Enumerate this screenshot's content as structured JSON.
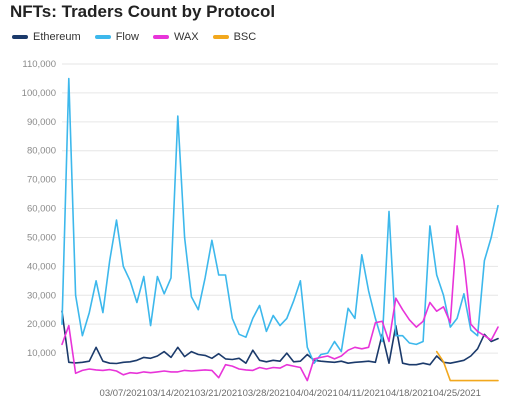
{
  "chart_data": {
    "type": "line",
    "title": "NFTs: Traders Count by Protocol",
    "xlabel": "",
    "ylabel": "",
    "ylim": [
      0,
      110000
    ],
    "yticks": [
      {
        "value": 10000,
        "label": "10,000"
      },
      {
        "value": 20000,
        "label": "20,000"
      },
      {
        "value": 30000,
        "label": "30,000"
      },
      {
        "value": 40000,
        "label": "40,000"
      },
      {
        "value": 50000,
        "label": "50,000"
      },
      {
        "value": 60000,
        "label": "60,000"
      },
      {
        "value": 70000,
        "label": "70,000"
      },
      {
        "value": 80000,
        "label": "80,000"
      },
      {
        "value": 90000,
        "label": "90,000"
      },
      {
        "value": 100000,
        "label": "100,000"
      },
      {
        "value": 110000,
        "label": "110,000"
      }
    ],
    "xlim": [
      "2021-02-26",
      "2021-05-01"
    ],
    "xticks": [
      {
        "date": "2021-03-07",
        "label": "03/07/2021"
      },
      {
        "date": "2021-03-14",
        "label": "03/14/2021"
      },
      {
        "date": "2021-03-21",
        "label": "03/21/2021"
      },
      {
        "date": "2021-03-28",
        "label": "03/28/2021"
      },
      {
        "date": "2021-04-04",
        "label": "04/04/2021"
      },
      {
        "date": "2021-04-11",
        "label": "04/11/2021"
      },
      {
        "date": "2021-04-18",
        "label": "04/18/2021"
      },
      {
        "date": "2021-04-25",
        "label": "04/25/2021"
      }
    ],
    "grid": true,
    "legend_position": "top-left",
    "series": [
      {
        "name": "Ethereum",
        "color": "#1b3a6b",
        "points": [
          [
            "2021-02-26",
            24500
          ],
          [
            "2021-02-27",
            6800
          ],
          [
            "2021-02-28",
            6600
          ],
          [
            "2021-03-01",
            6800
          ],
          [
            "2021-03-02",
            7200
          ],
          [
            "2021-03-03",
            12000
          ],
          [
            "2021-03-04",
            7200
          ],
          [
            "2021-03-05",
            6500
          ],
          [
            "2021-03-06",
            6400
          ],
          [
            "2021-03-07",
            6800
          ],
          [
            "2021-03-08",
            7000
          ],
          [
            "2021-03-09",
            7500
          ],
          [
            "2021-03-10",
            8500
          ],
          [
            "2021-03-11",
            8200
          ],
          [
            "2021-03-12",
            9000
          ],
          [
            "2021-03-13",
            10500
          ],
          [
            "2021-03-14",
            8500
          ],
          [
            "2021-03-15",
            12000
          ],
          [
            "2021-03-16",
            8800
          ],
          [
            "2021-03-17",
            10500
          ],
          [
            "2021-03-18",
            9500
          ],
          [
            "2021-03-19",
            9200
          ],
          [
            "2021-03-20",
            8200
          ],
          [
            "2021-03-21",
            9800
          ],
          [
            "2021-03-22",
            8000
          ],
          [
            "2021-03-23",
            7800
          ],
          [
            "2021-03-24",
            8200
          ],
          [
            "2021-03-25",
            6500
          ],
          [
            "2021-03-26",
            11000
          ],
          [
            "2021-03-27",
            7500
          ],
          [
            "2021-03-28",
            7000
          ],
          [
            "2021-03-29",
            7500
          ],
          [
            "2021-03-30",
            7200
          ],
          [
            "2021-03-31",
            10000
          ],
          [
            "2021-04-01",
            7000
          ],
          [
            "2021-04-02",
            7200
          ],
          [
            "2021-04-03",
            9500
          ],
          [
            "2021-04-04",
            7500
          ],
          [
            "2021-04-05",
            7200
          ],
          [
            "2021-04-06",
            7000
          ],
          [
            "2021-04-07",
            6800
          ],
          [
            "2021-04-08",
            7200
          ],
          [
            "2021-04-09",
            6500
          ],
          [
            "2021-04-10",
            6800
          ],
          [
            "2021-04-11",
            7000
          ],
          [
            "2021-04-12",
            7200
          ],
          [
            "2021-04-13",
            6800
          ],
          [
            "2021-04-14",
            16500
          ],
          [
            "2021-04-15",
            6500
          ],
          [
            "2021-04-16",
            19500
          ],
          [
            "2021-04-17",
            6500
          ],
          [
            "2021-04-18",
            6000
          ],
          [
            "2021-04-19",
            6000
          ],
          [
            "2021-04-20",
            6500
          ],
          [
            "2021-04-21",
            6000
          ],
          [
            "2021-04-22",
            9000
          ],
          [
            "2021-04-23",
            6800
          ],
          [
            "2021-04-24",
            6500
          ],
          [
            "2021-04-25",
            7000
          ],
          [
            "2021-04-26",
            7500
          ],
          [
            "2021-04-27",
            9000
          ],
          [
            "2021-04-28",
            11500
          ],
          [
            "2021-04-29",
            16500
          ],
          [
            "2021-04-30",
            14000
          ],
          [
            "2021-05-01",
            15000
          ]
        ]
      },
      {
        "name": "Flow",
        "color": "#3db8ec",
        "points": [
          [
            "2021-02-26",
            20000
          ],
          [
            "2021-02-27",
            105000
          ],
          [
            "2021-02-28",
            30000
          ],
          [
            "2021-03-01",
            16000
          ],
          [
            "2021-03-02",
            24000
          ],
          [
            "2021-03-03",
            35000
          ],
          [
            "2021-03-04",
            24000
          ],
          [
            "2021-03-05",
            42000
          ],
          [
            "2021-03-06",
            56000
          ],
          [
            "2021-03-07",
            40000
          ],
          [
            "2021-03-08",
            35000
          ],
          [
            "2021-03-09",
            27500
          ],
          [
            "2021-03-10",
            36500
          ],
          [
            "2021-03-11",
            19500
          ],
          [
            "2021-03-12",
            36500
          ],
          [
            "2021-03-13",
            30500
          ],
          [
            "2021-03-14",
            36000
          ],
          [
            "2021-03-15",
            92000
          ],
          [
            "2021-03-16",
            50000
          ],
          [
            "2021-03-17",
            29500
          ],
          [
            "2021-03-18",
            25000
          ],
          [
            "2021-03-19",
            36000
          ],
          [
            "2021-03-20",
            49000
          ],
          [
            "2021-03-21",
            37000
          ],
          [
            "2021-03-22",
            37000
          ],
          [
            "2021-03-23",
            22000
          ],
          [
            "2021-03-24",
            16500
          ],
          [
            "2021-03-25",
            15500
          ],
          [
            "2021-03-26",
            22000
          ],
          [
            "2021-03-27",
            26500
          ],
          [
            "2021-03-28",
            17500
          ],
          [
            "2021-03-29",
            23000
          ],
          [
            "2021-03-30",
            19500
          ],
          [
            "2021-03-31",
            22000
          ],
          [
            "2021-04-01",
            28000
          ],
          [
            "2021-04-02",
            35000
          ],
          [
            "2021-04-03",
            12000
          ],
          [
            "2021-04-04",
            6500
          ],
          [
            "2021-04-05",
            9500
          ],
          [
            "2021-04-06",
            10000
          ],
          [
            "2021-04-07",
            14000
          ],
          [
            "2021-04-08",
            10500
          ],
          [
            "2021-04-09",
            25500
          ],
          [
            "2021-04-10",
            22000
          ],
          [
            "2021-04-11",
            44000
          ],
          [
            "2021-04-12",
            31500
          ],
          [
            "2021-04-13",
            22000
          ],
          [
            "2021-04-14",
            14000
          ],
          [
            "2021-04-15",
            59000
          ],
          [
            "2021-04-16",
            16000
          ],
          [
            "2021-04-17",
            16000
          ],
          [
            "2021-04-18",
            13500
          ],
          [
            "2021-04-19",
            13000
          ],
          [
            "2021-04-20",
            14000
          ],
          [
            "2021-04-21",
            54000
          ],
          [
            "2021-04-22",
            37000
          ],
          [
            "2021-04-23",
            30000
          ],
          [
            "2021-04-24",
            19000
          ],
          [
            "2021-04-25",
            22000
          ],
          [
            "2021-04-26",
            30500
          ],
          [
            "2021-04-27",
            18000
          ],
          [
            "2021-04-28",
            16000
          ],
          [
            "2021-04-29",
            42000
          ],
          [
            "2021-04-30",
            50000
          ],
          [
            "2021-05-01",
            61000
          ]
        ]
      },
      {
        "name": "WAX",
        "color": "#e834d9",
        "points": [
          [
            "2021-02-26",
            13000
          ],
          [
            "2021-02-27",
            19500
          ],
          [
            "2021-02-28",
            3000
          ],
          [
            "2021-03-01",
            4000
          ],
          [
            "2021-03-02",
            4500
          ],
          [
            "2021-03-03",
            4200
          ],
          [
            "2021-03-04",
            4000
          ],
          [
            "2021-03-05",
            4300
          ],
          [
            "2021-03-06",
            3800
          ],
          [
            "2021-03-07",
            2500
          ],
          [
            "2021-03-08",
            3200
          ],
          [
            "2021-03-09",
            3000
          ],
          [
            "2021-03-10",
            3500
          ],
          [
            "2021-03-11",
            3200
          ],
          [
            "2021-03-12",
            3500
          ],
          [
            "2021-03-13",
            3800
          ],
          [
            "2021-03-14",
            3500
          ],
          [
            "2021-03-15",
            3500
          ],
          [
            "2021-03-16",
            4000
          ],
          [
            "2021-03-17",
            3800
          ],
          [
            "2021-03-18",
            4000
          ],
          [
            "2021-03-19",
            4200
          ],
          [
            "2021-03-20",
            4000
          ],
          [
            "2021-03-21",
            1500
          ],
          [
            "2021-03-22",
            6000
          ],
          [
            "2021-03-23",
            5500
          ],
          [
            "2021-03-24",
            4500
          ],
          [
            "2021-03-25",
            4200
          ],
          [
            "2021-03-26",
            4000
          ],
          [
            "2021-03-27",
            5000
          ],
          [
            "2021-03-28",
            4500
          ],
          [
            "2021-03-29",
            5000
          ],
          [
            "2021-03-30",
            4800
          ],
          [
            "2021-03-31",
            6000
          ],
          [
            "2021-04-01",
            5500
          ],
          [
            "2021-04-02",
            5000
          ],
          [
            "2021-04-03",
            500
          ],
          [
            "2021-04-04",
            8000
          ],
          [
            "2021-04-05",
            8500
          ],
          [
            "2021-04-06",
            9000
          ],
          [
            "2021-04-07",
            8000
          ],
          [
            "2021-04-08",
            9000
          ],
          [
            "2021-04-09",
            11000
          ],
          [
            "2021-04-10",
            12000
          ],
          [
            "2021-04-11",
            11500
          ],
          [
            "2021-04-12",
            12000
          ],
          [
            "2021-04-13",
            20500
          ],
          [
            "2021-04-14",
            21000
          ],
          [
            "2021-04-15",
            14000
          ],
          [
            "2021-04-16",
            29000
          ],
          [
            "2021-04-17",
            25000
          ],
          [
            "2021-04-18",
            21500
          ],
          [
            "2021-04-19",
            19000
          ],
          [
            "2021-04-20",
            21000
          ],
          [
            "2021-04-21",
            27500
          ],
          [
            "2021-04-22",
            24500
          ],
          [
            "2021-04-23",
            26000
          ],
          [
            "2021-04-24",
            20500
          ],
          [
            "2021-04-25",
            54000
          ],
          [
            "2021-04-26",
            42000
          ],
          [
            "2021-04-27",
            20000
          ],
          [
            "2021-04-28",
            17500
          ],
          [
            "2021-04-29",
            16000
          ],
          [
            "2021-04-30",
            14500
          ],
          [
            "2021-05-01",
            19000
          ]
        ]
      },
      {
        "name": "BSC",
        "color": "#f2a81d",
        "points": [
          [
            "2021-04-22",
            10500
          ],
          [
            "2021-04-23",
            7000
          ],
          [
            "2021-04-24",
            500
          ],
          [
            "2021-04-25",
            500
          ],
          [
            "2021-04-26",
            500
          ],
          [
            "2021-04-27",
            500
          ],
          [
            "2021-04-28",
            500
          ],
          [
            "2021-04-29",
            500
          ],
          [
            "2021-04-30",
            500
          ],
          [
            "2021-05-01",
            500
          ]
        ]
      }
    ]
  }
}
